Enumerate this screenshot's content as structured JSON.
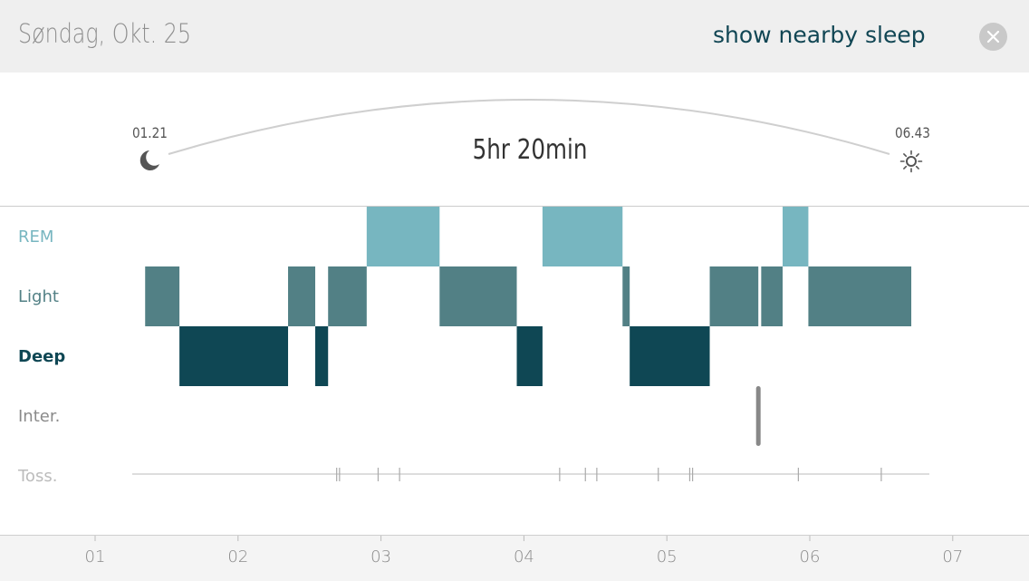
{
  "header": {
    "date": "Søndag, Okt. 25",
    "nearby_label": "show nearby sleep",
    "close_icon": "close-icon"
  },
  "summary": {
    "start_time": "01.21",
    "end_time": "06.43",
    "duration": "5hr 20min",
    "start_icon": "moon-icon",
    "end_icon": "sun-icon"
  },
  "stages": {
    "labels": [
      "REM",
      "Light",
      "Deep",
      "Inter.",
      "Toss."
    ],
    "colors": {
      "rem": "#77b6c0",
      "light": "#528085",
      "deep": "#0f4754",
      "inter": "#888888",
      "toss": "#aaaaaa"
    },
    "label_colors": [
      "#77b6c0",
      "#528085",
      "#0f4754",
      "#8a8a8a",
      "#bcbcbc"
    ]
  },
  "axis": {
    "hours": [
      "01",
      "02",
      "03",
      "04",
      "05",
      "06",
      "07"
    ]
  },
  "chart_data": {
    "type": "timeline",
    "x_unit": "hours (clock time)",
    "xlim": [
      1.0,
      7.0
    ],
    "segments": [
      {
        "stage": "Light",
        "start": 1.35,
        "end": 1.59
      },
      {
        "stage": "Deep",
        "start": 1.59,
        "end": 2.35
      },
      {
        "stage": "Light",
        "start": 2.35,
        "end": 2.54
      },
      {
        "stage": "Deep",
        "start": 2.54,
        "end": 2.63
      },
      {
        "stage": "Light",
        "start": 2.63,
        "end": 2.9
      },
      {
        "stage": "REM",
        "start": 2.9,
        "end": 3.41
      },
      {
        "stage": "Light",
        "start": 3.41,
        "end": 3.95
      },
      {
        "stage": "Deep",
        "start": 3.95,
        "end": 4.13
      },
      {
        "stage": "REM",
        "start": 4.13,
        "end": 4.69
      },
      {
        "stage": "Light",
        "start": 4.69,
        "end": 4.74
      },
      {
        "stage": "Deep",
        "start": 4.74,
        "end": 5.3
      },
      {
        "stage": "Light",
        "start": 5.3,
        "end": 5.64
      },
      {
        "stage": "Light",
        "start": 5.66,
        "end": 5.81
      },
      {
        "stage": "REM",
        "start": 5.81,
        "end": 5.99
      },
      {
        "stage": "Light",
        "start": 5.99,
        "end": 6.71
      }
    ],
    "interruptions": [
      5.64
    ],
    "tosses": [
      2.69,
      2.71,
      2.98,
      3.13,
      4.25,
      4.43,
      4.51,
      4.94,
      5.16,
      5.18,
      5.92,
      6.5
    ]
  }
}
